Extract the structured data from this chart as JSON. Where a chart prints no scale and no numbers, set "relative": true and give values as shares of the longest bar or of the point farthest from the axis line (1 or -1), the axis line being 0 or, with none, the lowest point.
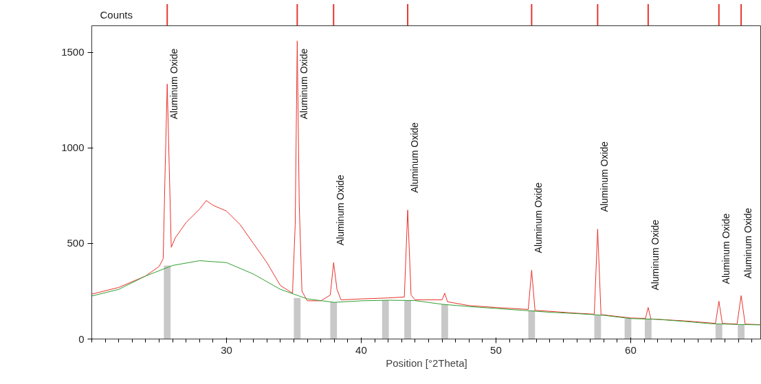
{
  "chart_data": [
    {
      "type": "bar",
      "relative": true,
      "tick_labels": false,
      "xlim": [
        20,
        69.7
      ],
      "color": "#e8302a",
      "x": [
        25.6,
        35.25,
        37.95,
        43.45,
        52.65,
        57.55,
        61.3,
        66.55,
        68.2
      ],
      "values": [
        1,
        1,
        1,
        1,
        1,
        1,
        1,
        1,
        1
      ]
    },
    {
      "type": "line",
      "xlabel": "Position [°2Theta]",
      "ylabel": "Counts",
      "xlim": [
        20,
        69.7
      ],
      "ylim": [
        0,
        1640
      ],
      "xticks": [
        30,
        40,
        50,
        60
      ],
      "yticks": [
        0,
        500,
        1000,
        1500
      ],
      "grid": false,
      "series": [
        {
          "type": "bar",
          "color": "#c8c8c8",
          "x": [
            25.6,
            35.25,
            37.95,
            41.8,
            43.45,
            46.2,
            52.65,
            57.55,
            59.8,
            61.3,
            66.55,
            68.2
          ],
          "values": [
            385,
            215,
            192,
            203,
            201,
            182,
            150,
            126,
            108,
            107,
            80,
            76
          ]
        },
        {
          "color": "#e8302a",
          "x": [
            20,
            22,
            24,
            25.0,
            25.3,
            25.45,
            25.6,
            25.75,
            25.9,
            26.2,
            27,
            28,
            28.5,
            29,
            30,
            31,
            32,
            33,
            34,
            34.9,
            35.1,
            35.25,
            35.4,
            35.6,
            36,
            37,
            37.7,
            37.95,
            38.2,
            38.5,
            40,
            42,
            43.2,
            43.45,
            43.7,
            44,
            46,
            46.2,
            46.4,
            48,
            50,
            52.4,
            52.65,
            52.9,
            54,
            56,
            57.3,
            57.55,
            57.8,
            60,
            61.1,
            61.3,
            61.5,
            64,
            66.3,
            66.55,
            66.8,
            67.9,
            68.2,
            68.5,
            69.7
          ],
          "values": [
            235,
            270,
            330,
            380,
            420,
            900,
            1335,
            900,
            480,
            530,
            610,
            680,
            725,
            700,
            670,
            600,
            500,
            400,
            280,
            240,
            600,
            1560,
            700,
            250,
            200,
            200,
            230,
            400,
            260,
            205,
            210,
            215,
            220,
            675,
            230,
            205,
            205,
            240,
            195,
            175,
            165,
            155,
            360,
            150,
            145,
            135,
            130,
            575,
            128,
            110,
            108,
            165,
            105,
            95,
            82,
            198,
            82,
            78,
            227,
            78,
            75
          ]
        },
        {
          "color": "#2e9e2e",
          "x": [
            20,
            22,
            24,
            26,
            28,
            30,
            32,
            34,
            36,
            38,
            40,
            42,
            44,
            46,
            48,
            50,
            52,
            54,
            56,
            58,
            60,
            62,
            64,
            66,
            68,
            69.7
          ],
          "values": [
            225,
            260,
            330,
            385,
            410,
            400,
            340,
            260,
            210,
            192,
            200,
            203,
            201,
            182,
            170,
            160,
            150,
            140,
            133,
            124,
            107,
            103,
            92,
            80,
            76,
            74
          ]
        }
      ],
      "annotations": [
        {
          "text": "Aluminum Oxide",
          "x": 25.6,
          "y": 1335
        },
        {
          "text": "Aluminum Oxide",
          "x": 35.25,
          "y": 1560
        },
        {
          "text": "Aluminum Oxide",
          "x": 37.95,
          "y": 400
        },
        {
          "text": "Aluminum Oxide",
          "x": 43.45,
          "y": 675
        },
        {
          "text": "Aluminum Oxide",
          "x": 52.65,
          "y": 360
        },
        {
          "text": "Aluminum Oxide",
          "x": 57.55,
          "y": 575
        },
        {
          "text": "Aluminum Oxide",
          "x": 61.3,
          "y": 165
        },
        {
          "text": "Aluminum Oxide",
          "x": 66.55,
          "y": 198
        },
        {
          "text": "Aluminum Oxide",
          "x": 68.2,
          "y": 227
        }
      ]
    }
  ]
}
